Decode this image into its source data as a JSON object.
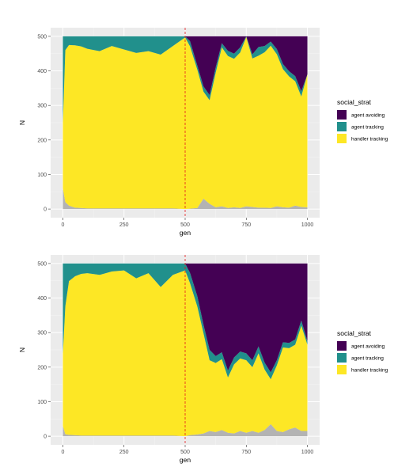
{
  "chart_data": [
    {
      "type": "area",
      "stacked": true,
      "xlabel": "gen",
      "ylabel": "N",
      "xlim": [
        0,
        1000
      ],
      "ylim": [
        0,
        500
      ],
      "x_ticks": [
        0,
        250,
        500,
        750,
        1000
      ],
      "y_ticks": [
        0,
        100,
        200,
        300,
        400,
        500
      ],
      "vline": {
        "x": 500,
        "color": "#e41a1c",
        "style": "dashed"
      },
      "legend": {
        "title": "social_strat",
        "position": "right"
      },
      "grid": true,
      "x": [
        0,
        10,
        25,
        50,
        75,
        100,
        150,
        200,
        250,
        300,
        350,
        400,
        450,
        500,
        520,
        550,
        575,
        600,
        625,
        650,
        675,
        700,
        725,
        750,
        775,
        800,
        825,
        850,
        875,
        900,
        925,
        950,
        975,
        1000
      ],
      "series": [
        {
          "name": "",
          "color": "#b3b3b3",
          "values": [
            60,
            20,
            10,
            4,
            3,
            2,
            2,
            2,
            2,
            2,
            2,
            2,
            2,
            0,
            1,
            3,
            30,
            15,
            5,
            8,
            3,
            5,
            3,
            8,
            6,
            4,
            4,
            3,
            8,
            5,
            4,
            10,
            6,
            5
          ]
        },
        {
          "name": "handler tracking",
          "color": "#fde725",
          "values": [
            190,
            440,
            465,
            470,
            468,
            462,
            455,
            470,
            460,
            450,
            455,
            445,
            470,
            497,
            470,
            400,
            310,
            300,
            390,
            460,
            440,
            430,
            450,
            490,
            430,
            440,
            450,
            470,
            440,
            400,
            380,
            360,
            320,
            385
          ]
        },
        {
          "name": "agent tracking",
          "color": "#21908c",
          "values": [
            250,
            40,
            25,
            26,
            29,
            36,
            43,
            28,
            38,
            48,
            43,
            53,
            28,
            3,
            15,
            12,
            15,
            15,
            15,
            12,
            15,
            15,
            15,
            2,
            12,
            25,
            18,
            12,
            15,
            15,
            15,
            15,
            15,
            0
          ]
        },
        {
          "name": "agent avoiding",
          "color": "#440154",
          "values": [
            0,
            0,
            0,
            0,
            0,
            0,
            0,
            0,
            0,
            0,
            0,
            0,
            0,
            0,
            14,
            85,
            145,
            170,
            90,
            20,
            42,
            50,
            32,
            0,
            52,
            31,
            28,
            15,
            37,
            80,
            101,
            115,
            159,
            110
          ]
        }
      ]
    },
    {
      "type": "area",
      "stacked": true,
      "xlabel": "gen",
      "ylabel": "N",
      "xlim": [
        0,
        1000
      ],
      "ylim": [
        0,
        500
      ],
      "x_ticks": [
        0,
        250,
        500,
        750,
        1000
      ],
      "y_ticks": [
        0,
        100,
        200,
        300,
        400,
        500
      ],
      "vline": {
        "x": 500,
        "color": "#e41a1c",
        "style": "dashed"
      },
      "legend": {
        "title": "social_strat",
        "position": "right"
      },
      "grid": true,
      "x": [
        0,
        10,
        25,
        50,
        75,
        100,
        150,
        200,
        250,
        300,
        350,
        400,
        450,
        500,
        520,
        550,
        575,
        600,
        625,
        650,
        675,
        700,
        725,
        750,
        775,
        800,
        825,
        850,
        875,
        900,
        925,
        950,
        975,
        1000
      ],
      "series": [
        {
          "name": "",
          "color": "#b3b3b3",
          "values": [
            30,
            6,
            4,
            3,
            2,
            2,
            2,
            2,
            2,
            2,
            2,
            2,
            2,
            0,
            3,
            5,
            8,
            15,
            12,
            18,
            10,
            8,
            15,
            10,
            15,
            10,
            18,
            35,
            15,
            12,
            20,
            25,
            15,
            15
          ]
        },
        {
          "name": "handler tracking",
          "color": "#fde725",
          "values": [
            210,
            370,
            445,
            460,
            468,
            470,
            465,
            475,
            478,
            455,
            470,
            430,
            465,
            480,
            440,
            370,
            290,
            205,
            200,
            205,
            160,
            200,
            210,
            210,
            185,
            230,
            175,
            130,
            190,
            245,
            235,
            240,
            305,
            250
          ]
        },
        {
          "name": "agent tracking",
          "color": "#21908c",
          "values": [
            260,
            124,
            51,
            37,
            30,
            28,
            33,
            23,
            20,
            43,
            28,
            68,
            33,
            20,
            30,
            30,
            25,
            30,
            20,
            20,
            20,
            20,
            20,
            20,
            20,
            20,
            20,
            20,
            15,
            15,
            15,
            15,
            15,
            10
          ]
        },
        {
          "name": "agent avoiding",
          "color": "#440154",
          "values": [
            0,
            0,
            0,
            0,
            0,
            0,
            0,
            0,
            0,
            0,
            0,
            0,
            0,
            0,
            27,
            95,
            177,
            250,
            268,
            257,
            310,
            272,
            255,
            260,
            280,
            240,
            287,
            315,
            280,
            228,
            230,
            220,
            165,
            225
          ]
        }
      ]
    }
  ]
}
